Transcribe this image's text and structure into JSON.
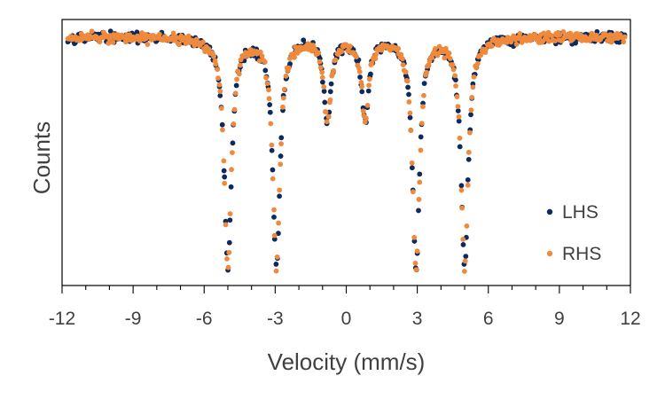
{
  "chart_data": {
    "type": "scatter",
    "title": "",
    "xlabel": "Velocity (mm/s)",
    "ylabel": "Counts",
    "xlim": [
      -12,
      12
    ],
    "ylim": [
      0,
      1
    ],
    "xticks": [
      -12,
      -9,
      -6,
      -3,
      0,
      3,
      6,
      9,
      12
    ],
    "xtick_labels": [
      "-12",
      "-9",
      "-6",
      "-3",
      "0",
      "3",
      "6",
      "9",
      "12"
    ],
    "grid": false,
    "legend_position": "bottom-right",
    "baseline_level": 0.935,
    "line_width_mm_s": 0.18,
    "noise_amplitude": 0.012,
    "peaks": [
      {
        "position": -5.0,
        "depth": 0.87
      },
      {
        "position": -2.95,
        "depth": 0.87
      },
      {
        "position": -0.8,
        "depth": 0.31
      },
      {
        "position": 0.8,
        "depth": 0.31
      },
      {
        "position": 2.95,
        "depth": 0.87
      },
      {
        "position": 5.0,
        "depth": 0.87
      }
    ],
    "series": [
      {
        "name": "LHS",
        "color": "#0d2a5e",
        "marker": "circle"
      },
      {
        "name": "RHS",
        "color": "#ef8a3c",
        "marker": "circle"
      }
    ]
  }
}
